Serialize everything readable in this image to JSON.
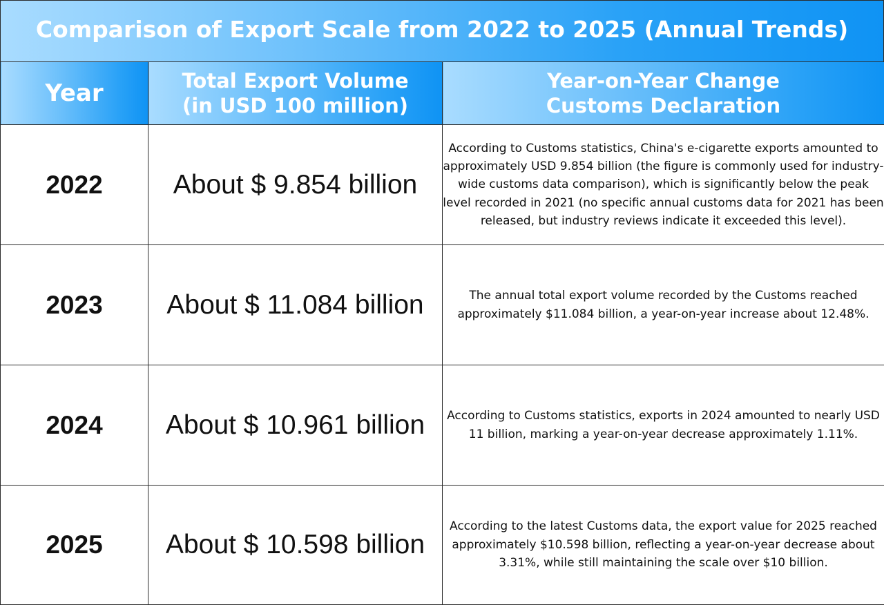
{
  "title": "Comparison of Export Scale from 2022 to 2025 (Annual Trends)",
  "header": {
    "year": "Year",
    "volume_line1": "Total Export Volume",
    "volume_line2": "(in USD 100 million)",
    "change_line1": "Year-on-Year Change",
    "change_line2": "Customs Declaration"
  },
  "rows": [
    {
      "year": "2022",
      "volume": "About $ 9.854 billion",
      "note": "According to Customs statistics, China's e-cigarette exports amounted to approximately USD 9.854 billion (the figure is commonly used for industry-wide customs data comparison), which is significantly below the peak level recorded in 2021 (no specific annual customs data for 2021 has been released, but industry reviews indicate it exceeded this level)."
    },
    {
      "year": "2023",
      "volume": "About $ 11.084 billion",
      "note": "The annual total export volume recorded by the Customs reached approximately $11.084 billion, a year-on-year increase about 12.48%."
    },
    {
      "year": "2024",
      "volume": "About $ 10.961 billion",
      "note": "According to Customs statistics, exports in 2024 amounted to nearly USD 11 billion, marking a year-on-year decrease approximately 1.11%."
    },
    {
      "year": "2025",
      "volume": "About $ 10.598 billion",
      "note": "According to the latest Customs data, the export value for 2025 reached approximately $10.598 billion, reflecting a year-on-year decrease about 3.31%, while still maintaining the scale over $10 billion."
    }
  ],
  "colors": {
    "header_gradient_start": "#a9dcff",
    "header_gradient_end": "#0f93f4",
    "border": "#2a2a2a",
    "text": "#111111"
  }
}
